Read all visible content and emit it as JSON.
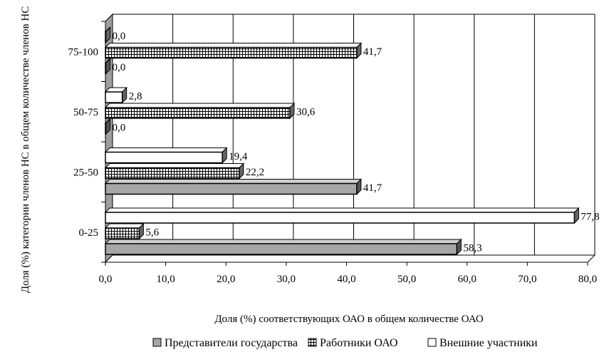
{
  "chart_data": {
    "type": "bar",
    "orientation": "horizontal",
    "style": "3d",
    "categories": [
      "0-25",
      "25-50",
      "50-75",
      "75-100"
    ],
    "series": [
      {
        "name": "Представители государства",
        "values": [
          58.3,
          41.7,
          0.0,
          0.0
        ],
        "labels": [
          "58,3",
          "41,7",
          "0,0",
          "0,0"
        ],
        "fill": "#a6a6a6",
        "pattern": "solid"
      },
      {
        "name": "Работники ОАО",
        "values": [
          5.6,
          22.2,
          30.6,
          41.7
        ],
        "labels": [
          "5,6",
          "22,2",
          "30,6",
          "41,7"
        ],
        "fill": "#ffffff",
        "pattern": "grid"
      },
      {
        "name": "Внешние участники",
        "values": [
          77.8,
          19.4,
          2.8,
          0.0
        ],
        "labels": [
          "77,8",
          "19,4",
          "2,8",
          "0,0"
        ],
        "fill": "#ffffff",
        "pattern": "none"
      }
    ],
    "xlabel": "Доля (%) соответствующих ОАО в общем количестве ОАО",
    "ylabel": "Доля (%) категории членов НС в общем количестве членов НС",
    "xlim": [
      0,
      80
    ],
    "xticks": [
      "0,0",
      "10,0",
      "20,0",
      "30,0",
      "40,0",
      "50,0",
      "60,0",
      "70,0",
      "80,0"
    ],
    "grid": "vertical",
    "legend": "bottom"
  }
}
